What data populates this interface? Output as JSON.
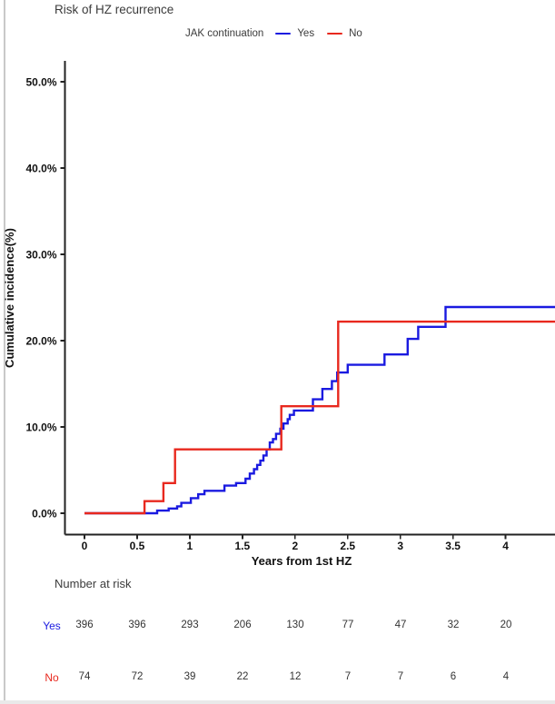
{
  "window": {
    "background": "#ffffff",
    "left_border_color": "#c9c9c9",
    "bottom_strip_color": "#e9e9e9"
  },
  "title": "Risk of HZ recurrence",
  "legend": {
    "title": "JAK continuation",
    "items": [
      {
        "label": "Yes",
        "color": "#1a1ae0"
      },
      {
        "label": "No",
        "color": "#e8281e"
      }
    ]
  },
  "chart_data": {
    "type": "line",
    "subtype": "step-cumulative-incidence",
    "title": "Risk of HZ recurrence",
    "xlabel": "Years from 1st HZ",
    "ylabel": "Cumulative incidence(%)",
    "x_ticks": [
      0,
      0.5,
      1,
      1.5,
      2,
      2.5,
      3,
      3.5,
      4
    ],
    "x_tick_labels": [
      "0",
      "0.5",
      "1",
      "1.5",
      "2",
      "2.5",
      "3",
      "3.5",
      "4"
    ],
    "y_ticks": [
      0,
      10,
      20,
      30,
      40,
      50
    ],
    "y_tick_labels": [
      "0.0%",
      "10.0%",
      "20.0%",
      "30.0%",
      "40.0%",
      "50.0%"
    ],
    "xlim": [
      0,
      4.47
    ],
    "ylim": [
      0,
      52
    ],
    "grid": false,
    "legend_position": "top",
    "series": [
      {
        "name": "Yes",
        "color": "#1a1ae0",
        "step": "post",
        "start": [
          0,
          0
        ],
        "end_x": 4.47,
        "points": [
          [
            0.69,
            0.3
          ],
          [
            0.8,
            0.55
          ],
          [
            0.88,
            0.8
          ],
          [
            0.92,
            1.2
          ],
          [
            1.01,
            1.75
          ],
          [
            1.08,
            2.2
          ],
          [
            1.14,
            2.6
          ],
          [
            1.33,
            3.2
          ],
          [
            1.44,
            3.5
          ],
          [
            1.53,
            4.0
          ],
          [
            1.57,
            4.6
          ],
          [
            1.61,
            5.1
          ],
          [
            1.64,
            5.6
          ],
          [
            1.67,
            6.1
          ],
          [
            1.7,
            6.7
          ],
          [
            1.73,
            7.4
          ],
          [
            1.76,
            8.2
          ],
          [
            1.79,
            8.6
          ],
          [
            1.82,
            9.2
          ],
          [
            1.86,
            9.8
          ],
          [
            1.89,
            10.4
          ],
          [
            1.93,
            10.9
          ],
          [
            1.95,
            11.4
          ],
          [
            1.99,
            11.9
          ],
          [
            2.17,
            13.2
          ],
          [
            2.26,
            14.4
          ],
          [
            2.35,
            15.3
          ],
          [
            2.4,
            16.3
          ],
          [
            2.5,
            17.2
          ],
          [
            2.85,
            18.4
          ],
          [
            3.07,
            20.2
          ],
          [
            3.17,
            21.6
          ],
          [
            3.43,
            23.9
          ]
        ]
      },
      {
        "name": "No",
        "color": "#e8281e",
        "step": "post",
        "start": [
          0,
          0
        ],
        "end_x": 4.47,
        "points": [
          [
            0.57,
            1.4
          ],
          [
            0.75,
            3.5
          ],
          [
            0.86,
            7.4
          ],
          [
            1.87,
            12.4
          ],
          [
            2.41,
            22.2
          ]
        ]
      }
    ]
  },
  "risk_table": {
    "header": "Number at risk",
    "rows": [
      {
        "label": "Yes",
        "color": "#1a1ae0",
        "values": [
          "396",
          "396",
          "293",
          "206",
          "130",
          "77",
          "47",
          "32",
          "20"
        ]
      },
      {
        "label": "No",
        "color": "#e8281e",
        "values": [
          "74",
          "72",
          "39",
          "22",
          "12",
          "7",
          "7",
          "6",
          "4"
        ]
      }
    ]
  }
}
